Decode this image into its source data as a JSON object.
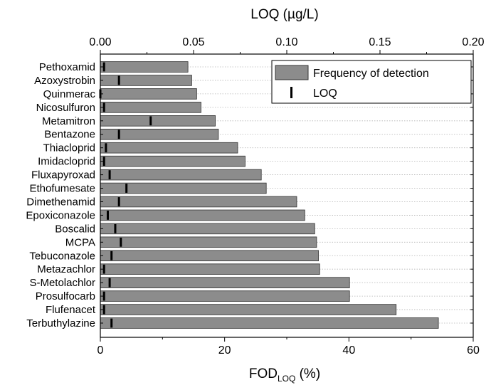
{
  "chart_data": {
    "type": "bar",
    "orientation": "horizontal",
    "categories": [
      "Pethoxamid",
      "Azoxystrobin",
      "Quinmerac",
      "Nicosulfuron",
      "Metamitron",
      "Bentazone",
      "Thiacloprid",
      "Imidacloprid",
      "Fluxapyroxad",
      "Ethofumesate",
      "Dimethenamid",
      "Epoxiconazole",
      "Boscalid",
      "MCPA",
      "Tebuconazole",
      "Metazachlor",
      "S-Metolachlor",
      "Prosulfocarb",
      "Flufenacet",
      "Terbuthylazine"
    ],
    "series": [
      {
        "name": "Frequency of detection",
        "axis": "bottom",
        "values": [
          14.1,
          14.7,
          15.5,
          16.2,
          18.5,
          19.0,
          22.1,
          23.3,
          25.9,
          26.7,
          31.6,
          32.9,
          34.5,
          34.8,
          35.1,
          35.3,
          40.1,
          40.1,
          47.6,
          54.4
        ]
      },
      {
        "name": "LOQ",
        "axis": "top",
        "values": [
          0.002,
          0.01,
          0.0,
          0.002,
          0.027,
          0.01,
          0.003,
          0.002,
          0.005,
          0.014,
          0.01,
          0.004,
          0.008,
          0.011,
          0.006,
          0.002,
          0.005,
          0.002,
          0.002,
          0.006
        ]
      }
    ],
    "bottom_axis": {
      "label_main": "FOD",
      "label_sub": "LOQ",
      "label_suffix": " (%)",
      "min": 0,
      "max": 60,
      "ticks": [
        "0",
        "20",
        "40",
        "60"
      ],
      "tick_values": [
        0,
        20,
        40,
        60
      ]
    },
    "top_axis": {
      "label": "LOQ (µg/L)",
      "min": 0,
      "max": 0.2,
      "ticks": [
        "0.00",
        "0.05",
        "0.10",
        "0.15",
        "0.20"
      ],
      "tick_values": [
        0,
        0.05,
        0.1,
        0.15,
        0.2
      ]
    },
    "grid": "horizontal-dotted",
    "legend": {
      "placement": "top-right",
      "entries": [
        "Frequency of detection",
        "LOQ"
      ]
    },
    "colors": {
      "bar_fill": "#8c8c8c",
      "bar_stroke": "#333333",
      "loq_marker": "#000000"
    }
  }
}
